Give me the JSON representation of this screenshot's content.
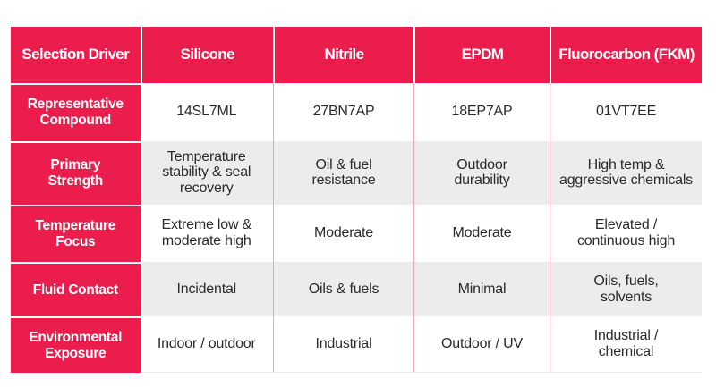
{
  "page": {
    "background_color": "#ffffff",
    "accent_red": "#EA1D4D",
    "zebra_gray": "#ECECEC",
    "body_text_color": "#2b2b2b",
    "column_divider_pink": "#F2A6B8"
  },
  "table": {
    "columns": [
      "Selection Driver",
      "Silicone",
      "Nitrile",
      "EPDM",
      "Fluorocarbon (FKM)"
    ],
    "rows": [
      {
        "label": "Representative\nCompound",
        "values": [
          "14SL7ML",
          "27BN7AP",
          "18EP7AP",
          "01VT7EE"
        ]
      },
      {
        "label": "Primary\nStrength",
        "values": [
          "Temperature\nstability & seal\nrecovery",
          "Oil & fuel\nresistance",
          "Outdoor\ndurability",
          "High temp &\naggressive chemicals"
        ]
      },
      {
        "label": "Temperature\nFocus",
        "values": [
          "Extreme low &\nmoderate high",
          "Moderate",
          "Moderate",
          "Elevated /\ncontinuous high"
        ]
      },
      {
        "label": "Fluid Contact",
        "values": [
          "Incidental",
          "Oils & fuels",
          "Minimal",
          "Oils, fuels,\nsolvents"
        ]
      },
      {
        "label": "Environmental\nExposure",
        "values": [
          "Indoor / outdoor",
          "Industrial",
          "Outdoor / UV",
          "Industrial /\nchemical"
        ]
      }
    ]
  },
  "chart_data": {
    "type": "table",
    "title": "",
    "columns": [
      "Selection Driver",
      "Silicone",
      "Nitrile",
      "EPDM",
      "Fluorocarbon (FKM)"
    ],
    "rows": [
      [
        "Representative Compound",
        "14SL7ML",
        "27BN7AP",
        "18EP7AP",
        "01VT7EE"
      ],
      [
        "Primary Strength",
        "Temperature stability & seal recovery",
        "Oil & fuel resistance",
        "Outdoor durability",
        "High temp & aggressive chemicals"
      ],
      [
        "Temperature Focus",
        "Extreme low & moderate high",
        "Moderate",
        "Moderate",
        "Elevated / continuous high"
      ],
      [
        "Fluid Contact",
        "Incidental",
        "Oils & fuels",
        "Minimal",
        "Oils, fuels, solvents"
      ],
      [
        "Environmental Exposure",
        "Indoor / outdoor",
        "Industrial",
        "Outdoor / UV",
        "Industrial / chemical"
      ]
    ],
    "layout": {
      "header_background": "#EA1D4D",
      "header_text_color": "#ffffff",
      "zebra_row_background": "#ECECEC",
      "grid": "red column dividers, white header gaps"
    }
  }
}
